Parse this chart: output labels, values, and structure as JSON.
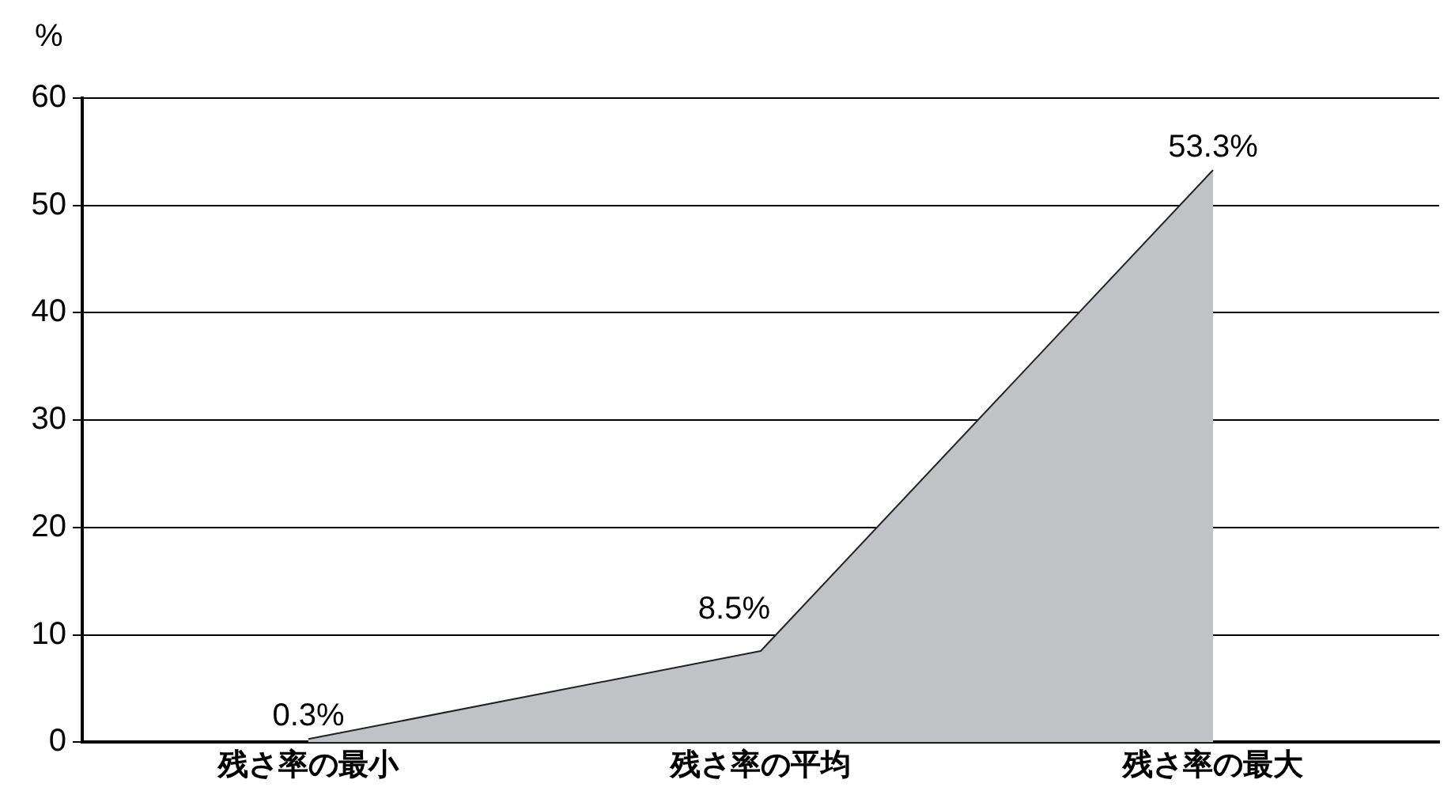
{
  "chart_data": {
    "type": "area",
    "ylabel": "%",
    "categories": [
      "残さ率の最小",
      "残さ率の平均",
      "残さ率の最大"
    ],
    "values": [
      0.3,
      8.5,
      53.3
    ],
    "value_labels": [
      "0.3%",
      "8.5%",
      "53.3%"
    ],
    "color": "#c0c2c6",
    "ylim": [
      0,
      60
    ],
    "yticks": [
      0,
      10,
      20,
      30,
      40,
      50,
      60
    ],
    "grid": "y",
    "legend": false,
    "marker": "none"
  }
}
